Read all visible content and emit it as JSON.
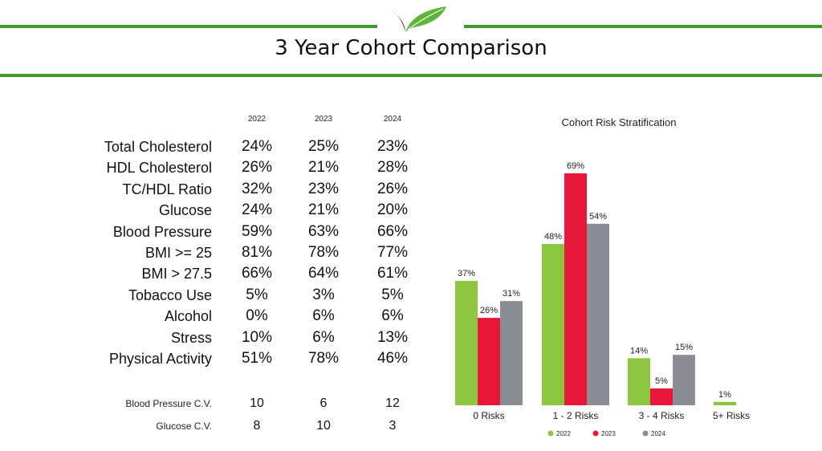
{
  "header": {
    "title": "3 Year Cohort Comparison"
  },
  "table": {
    "years": [
      "2022",
      "2023",
      "2024"
    ],
    "rows": [
      {
        "label": "Total Cholesterol",
        "values": [
          "24%",
          "25%",
          "23%"
        ]
      },
      {
        "label": "HDL Cholesterol",
        "values": [
          "26%",
          "21%",
          "28%"
        ]
      },
      {
        "label": "TC/HDL Ratio",
        "values": [
          "32%",
          "23%",
          "26%"
        ]
      },
      {
        "label": "Glucose",
        "values": [
          "24%",
          "21%",
          "20%"
        ]
      },
      {
        "label": "Blood Pressure",
        "values": [
          "59%",
          "63%",
          "66%"
        ]
      },
      {
        "label": "BMI >= 25",
        "values": [
          "81%",
          "78%",
          "77%"
        ]
      },
      {
        "label": "BMI > 27.5",
        "values": [
          "66%",
          "64%",
          "61%"
        ]
      },
      {
        "label": "Tobacco Use",
        "values": [
          "5%",
          "3%",
          "5%"
        ]
      },
      {
        "label": "Alcohol",
        "values": [
          "0%",
          "6%",
          "6%"
        ]
      },
      {
        "label": "Stress",
        "values": [
          "10%",
          "6%",
          "13%"
        ]
      },
      {
        "label": "Physical Activity",
        "values": [
          "51%",
          "78%",
          "46%"
        ]
      }
    ],
    "cv_rows": [
      {
        "label": "Blood Pressure C.V.",
        "values": [
          "10",
          "6",
          "12"
        ]
      },
      {
        "label": "Glucose C.V.",
        "values": [
          "8",
          "10",
          "3"
        ]
      }
    ]
  },
  "chart_data": {
    "type": "bar",
    "title": "Cohort Risk Stratification",
    "categories": [
      "0 Risks",
      "1 - 2 Risks",
      "3 - 4 Risks",
      "5+ Risks"
    ],
    "series": [
      {
        "name": "2022",
        "color": "#8cc63f",
        "values": [
          37,
          48,
          14,
          1
        ]
      },
      {
        "name": "2023",
        "color": "#e8173a",
        "values": [
          26,
          69,
          5,
          null
        ]
      },
      {
        "name": "2024",
        "color": "#8a8d93",
        "values": [
          31,
          54,
          15,
          null
        ]
      }
    ],
    "value_suffix": "%",
    "ylim": [
      0,
      70
    ],
    "grid": false,
    "legend_position": "bottom"
  }
}
